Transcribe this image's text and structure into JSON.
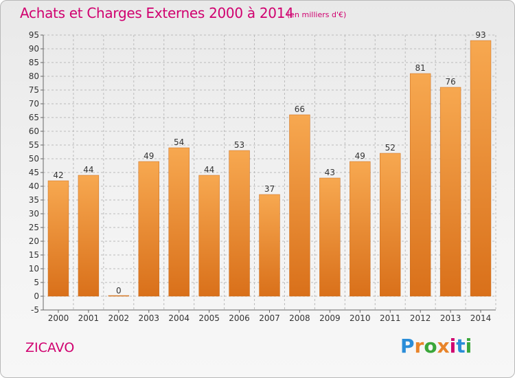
{
  "chart_data": {
    "type": "bar",
    "title": "Achats et Charges Externes 2000 à 2014",
    "subtitle": "(en milliers d'€)",
    "categories": [
      "2000",
      "2001",
      "2002",
      "2003",
      "2004",
      "2005",
      "2006",
      "2007",
      "2008",
      "2009",
      "2010",
      "2011",
      "2012",
      "2013",
      "2014"
    ],
    "values": [
      42,
      44,
      0,
      49,
      54,
      44,
      53,
      37,
      66,
      43,
      49,
      52,
      81,
      76,
      93
    ],
    "ylim": [
      -5,
      95
    ],
    "yticks": [
      -5,
      0,
      5,
      10,
      15,
      20,
      25,
      30,
      35,
      40,
      45,
      50,
      55,
      60,
      65,
      70,
      75,
      80,
      85,
      90,
      95
    ],
    "grid": true,
    "bar_color": "#e8842a",
    "xlabel": "",
    "ylabel": ""
  },
  "footer": {
    "place": "ZICAVO",
    "brand": [
      "P",
      "r",
      "o",
      "x",
      "i",
      "t",
      "i"
    ],
    "brand_colors": [
      "#2a8dd8",
      "#e8842a",
      "#3aa63a",
      "#e8842a",
      "#d0006f",
      "#2a8dd8",
      "#3aa63a"
    ]
  },
  "colors": {
    "accent": "#d0006f",
    "grid": "#bbbbbb",
    "axis_text": "#333333"
  }
}
